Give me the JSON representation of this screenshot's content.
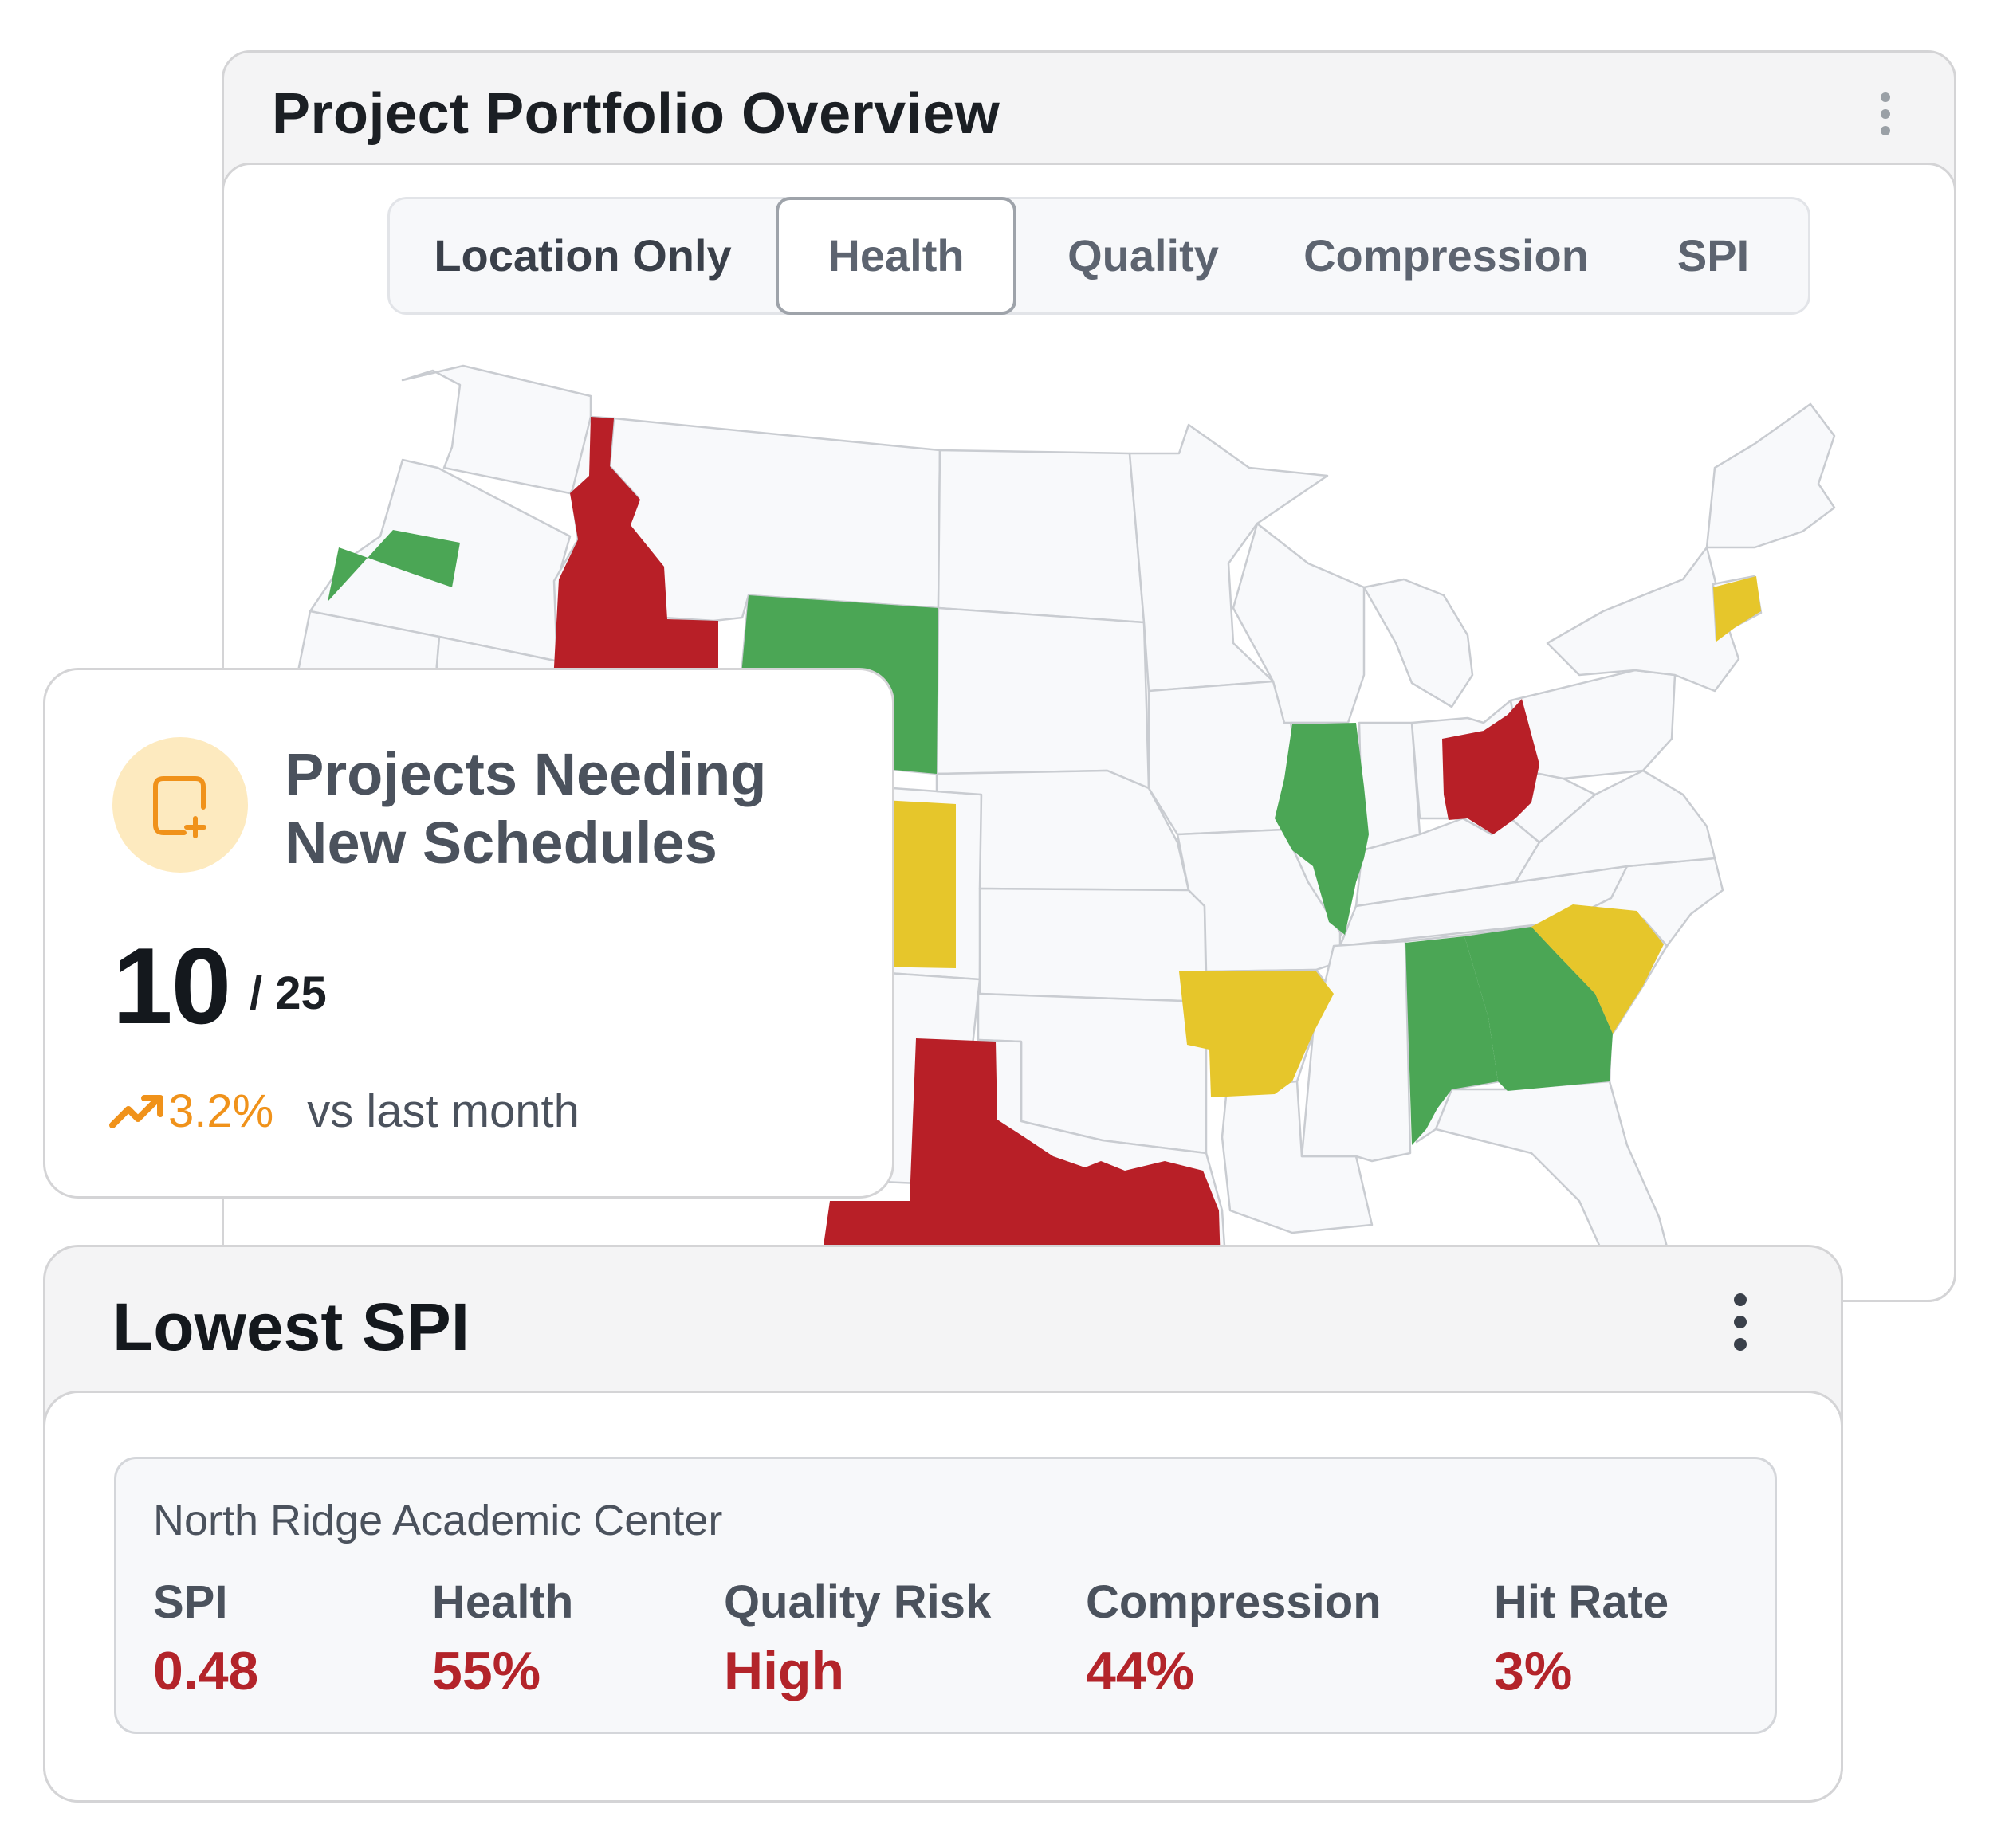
{
  "portfolio": {
    "title": "Project Portfolio Overview",
    "tabs": [
      "Location Only",
      "Health",
      "Quality",
      "Compression",
      "SPI"
    ],
    "active_tab": "Health",
    "status_colors": {
      "green": "#4ba655",
      "yellow": "#e6c62b",
      "red": "#b81f27",
      "neutral": "#f8f9fb"
    },
    "map_states": {
      "green": [
        "Washington",
        "Wyoming",
        "Illinois",
        "Alabama",
        "Georgia"
      ],
      "red": [
        "Idaho",
        "Ohio",
        "Texas"
      ],
      "yellow": [
        "Connecticut",
        "Colorado",
        "Arkansas",
        "South Carolina"
      ]
    }
  },
  "metric": {
    "icon": "calendar-plus-icon",
    "title": "Projects Needing New Schedules",
    "value": "10",
    "total": "/ 25",
    "trend_icon": "trending-up-icon",
    "trend_value": "3.2%",
    "trend_label": "vs last month",
    "accent": "#f0921a"
  },
  "lowest": {
    "title": "Lowest SPI",
    "project": {
      "name": "North Ridge Academic Center",
      "kpis": [
        {
          "label": "SPI",
          "value": "0.48"
        },
        {
          "label": "Health",
          "value": "55%"
        },
        {
          "label": "Quality Risk",
          "value": "High"
        },
        {
          "label": "Compression",
          "value": "44%"
        },
        {
          "label": "Hit Rate",
          "value": "3%"
        }
      ],
      "value_color": "#b3242a"
    }
  }
}
